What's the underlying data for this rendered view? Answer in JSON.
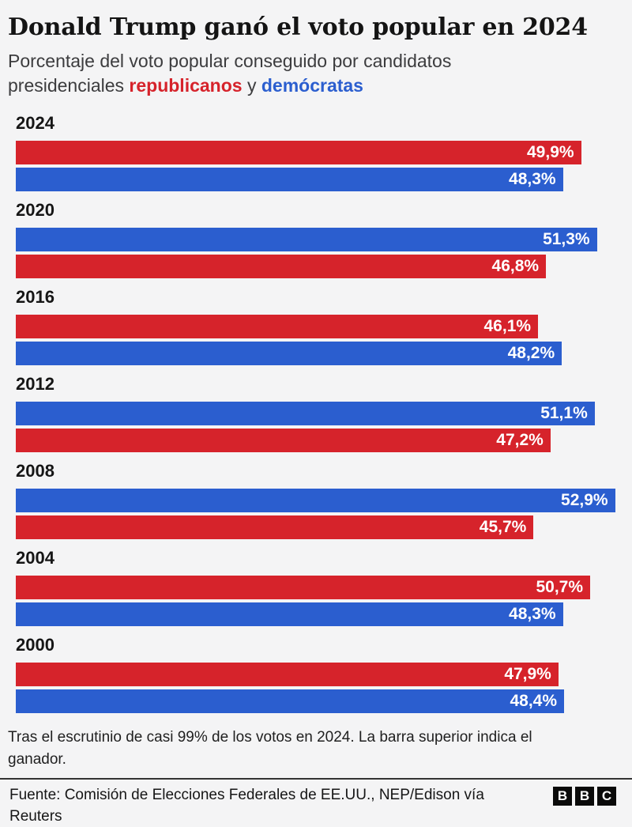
{
  "header": {
    "title": "Donald Trump ganó el voto popular en 2024",
    "subtitle_prefix": "Porcentaje del voto popular conseguido por candidatos presidenciales ",
    "subtitle_republicans": "republicanos",
    "subtitle_connector": " y ",
    "subtitle_democrats": "demócratas"
  },
  "colors": {
    "republican": "#d6232b",
    "democrat": "#2b5ecf",
    "background": "#f4f4f5",
    "text_dark": "#141414",
    "text_gray": "#3c3c3e"
  },
  "chart_data": {
    "type": "bar",
    "orientation": "horizontal",
    "unit": "%",
    "value_axis_max": 53,
    "grid": false,
    "legend": "inline in subtitle (republicanos=red, demócratas=blue)",
    "layout_note": "grouped by election year, top bar of each pair is the winner",
    "categories": [
      "2024",
      "2020",
      "2016",
      "2012",
      "2008",
      "2004",
      "2000"
    ],
    "series": [
      {
        "name": "republicanos",
        "color": "#d6232b",
        "values": [
          49.9,
          46.8,
          46.1,
          47.2,
          45.7,
          50.7,
          47.9
        ]
      },
      {
        "name": "demócratas",
        "color": "#2b5ecf",
        "values": [
          48.3,
          51.3,
          48.2,
          51.1,
          52.9,
          48.3,
          48.4
        ]
      }
    ],
    "groups": [
      {
        "year": "2024",
        "bars": [
          {
            "party": "republican",
            "value": 49.9,
            "label": "49,9%"
          },
          {
            "party": "democrat",
            "value": 48.3,
            "label": "48,3%"
          }
        ]
      },
      {
        "year": "2020",
        "bars": [
          {
            "party": "democrat",
            "value": 51.3,
            "label": "51,3%"
          },
          {
            "party": "republican",
            "value": 46.8,
            "label": "46,8%"
          }
        ]
      },
      {
        "year": "2016",
        "bars": [
          {
            "party": "republican",
            "value": 46.1,
            "label": "46,1%"
          },
          {
            "party": "democrat",
            "value": 48.2,
            "label": "48,2%"
          }
        ]
      },
      {
        "year": "2012",
        "bars": [
          {
            "party": "democrat",
            "value": 51.1,
            "label": "51,1%"
          },
          {
            "party": "republican",
            "value": 47.2,
            "label": "47,2%"
          }
        ]
      },
      {
        "year": "2008",
        "bars": [
          {
            "party": "democrat",
            "value": 52.9,
            "label": "52,9%"
          },
          {
            "party": "republican",
            "value": 45.7,
            "label": "45,7%"
          }
        ]
      },
      {
        "year": "2004",
        "bars": [
          {
            "party": "republican",
            "value": 50.7,
            "label": "50,7%"
          },
          {
            "party": "democrat",
            "value": 48.3,
            "label": "48,3%"
          }
        ]
      },
      {
        "year": "2000",
        "bars": [
          {
            "party": "republican",
            "value": 47.9,
            "label": "47,9%"
          },
          {
            "party": "democrat",
            "value": 48.4,
            "label": "48,4%"
          }
        ]
      }
    ]
  },
  "footnote": "Tras el escrutinio de casi 99% de los votos en 2024. La barra superior indica el ganador.",
  "footer": {
    "source": "Fuente: Comisión de Elecciones Federales de EE.UU., NEP/Edison vía Reuters",
    "logo_letters": [
      "B",
      "B",
      "C"
    ]
  }
}
